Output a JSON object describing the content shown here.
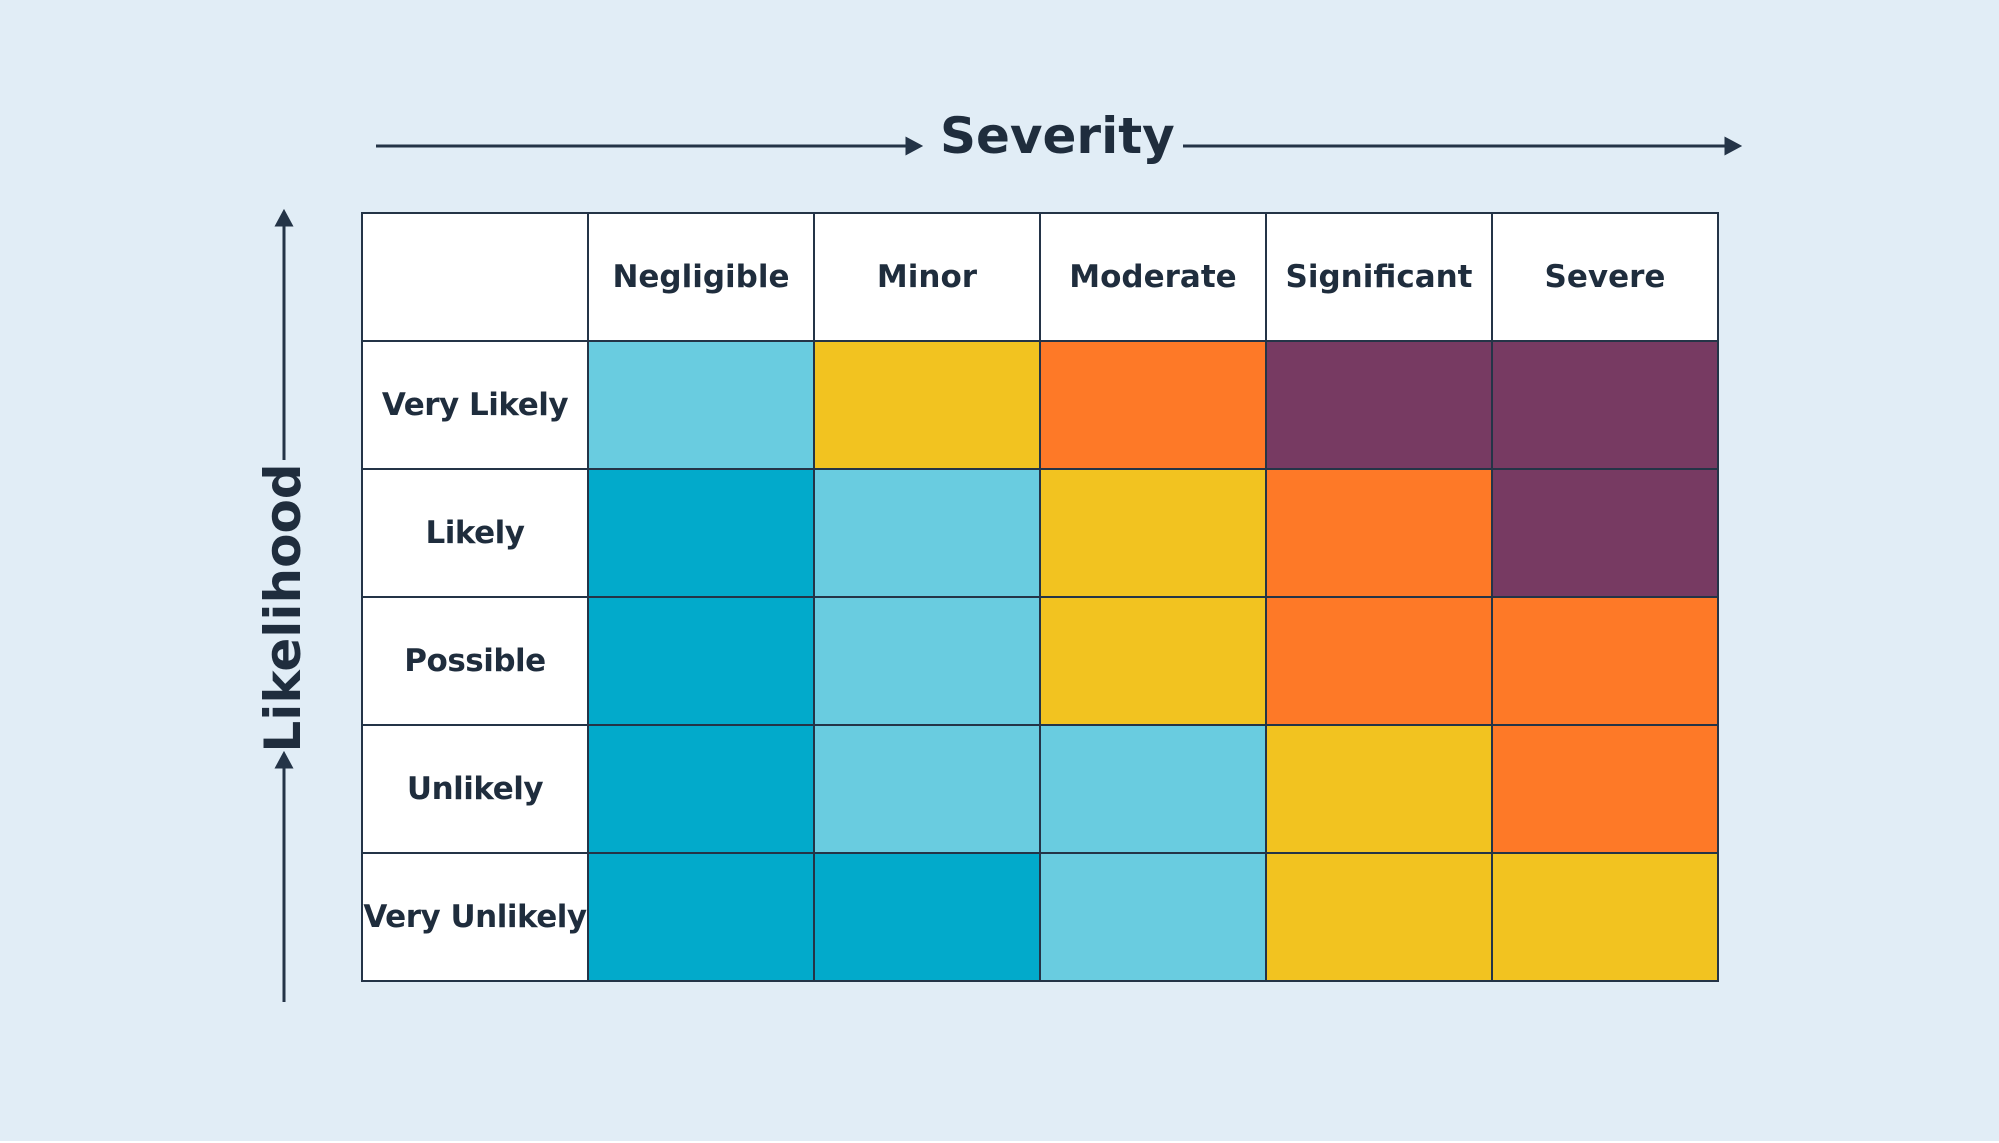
{
  "severity_axis": {
    "label": "Severity"
  },
  "likelihood_axis": {
    "label": "Likelihood"
  },
  "columns": [
    "Negligible",
    "Minor",
    "Moderate",
    "Significant",
    "Severe"
  ],
  "rows": [
    {
      "label": "Very Likely",
      "levels": [
        "low",
        "medium",
        "high",
        "extreme",
        "extreme"
      ]
    },
    {
      "label": "Likely",
      "levels": [
        "very-low",
        "low",
        "medium",
        "high",
        "extreme"
      ]
    },
    {
      "label": "Possible",
      "levels": [
        "very-low",
        "low",
        "medium",
        "high",
        "high"
      ]
    },
    {
      "label": "Unlikely",
      "levels": [
        "very-low",
        "low",
        "low",
        "medium",
        "high"
      ]
    },
    {
      "label": "Very Unlikely",
      "levels": [
        "very-low",
        "very-low",
        "low",
        "medium",
        "medium"
      ]
    }
  ],
  "level_colors": {
    "very-low": "#02aacb",
    "low": "#69cce0",
    "medium": "#f2c320",
    "high": "#fe7927",
    "extreme": "#773a62"
  },
  "colors": {
    "background": "#e1edf6",
    "ink": "#1f2d3d",
    "grid": "#243447"
  }
}
